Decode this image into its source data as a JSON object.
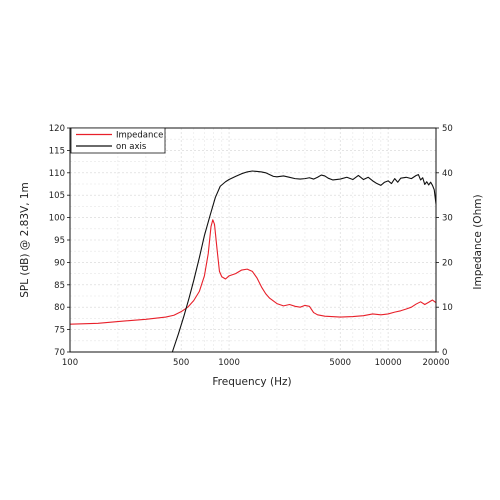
{
  "chart_data": {
    "type": "line",
    "xlabel": "Frequency (Hz)",
    "ylabel_left": "SPL (dB) @ 2.83V, 1m",
    "ylabel_right": "Impedance (Ohm)",
    "x_scale": "log",
    "xlim": [
      100,
      20000
    ],
    "ylim_left": [
      70,
      120
    ],
    "ylim_right": [
      0,
      50
    ],
    "x_ticks": [
      100,
      500,
      1000,
      5000,
      10000,
      20000
    ],
    "x_tick_labels": [
      "100",
      "500",
      "1000",
      "5000",
      "10000",
      "20000"
    ],
    "y_ticks_left": [
      70,
      75,
      80,
      85,
      90,
      95,
      100,
      105,
      110,
      115,
      120
    ],
    "y_ticks_right": [
      0,
      10,
      20,
      30,
      40,
      50
    ],
    "grid": true,
    "legend_position": "top-left",
    "series": [
      {
        "name": "Impedance",
        "axis": "right",
        "color": "#e8202a",
        "points": [
          [
            100,
            6.2
          ],
          [
            150,
            6.4
          ],
          [
            200,
            6.8
          ],
          [
            300,
            7.3
          ],
          [
            400,
            7.8
          ],
          [
            450,
            8.2
          ],
          [
            500,
            9.0
          ],
          [
            550,
            10.0
          ],
          [
            600,
            11.5
          ],
          [
            650,
            13.5
          ],
          [
            700,
            17.0
          ],
          [
            740,
            22.0
          ],
          [
            770,
            28.0
          ],
          [
            790,
            29.5
          ],
          [
            810,
            28.5
          ],
          [
            840,
            23.0
          ],
          [
            870,
            18.0
          ],
          [
            900,
            16.8
          ],
          [
            950,
            16.3
          ],
          [
            1000,
            17.0
          ],
          [
            1100,
            17.5
          ],
          [
            1200,
            18.3
          ],
          [
            1300,
            18.5
          ],
          [
            1400,
            18.0
          ],
          [
            1500,
            16.5
          ],
          [
            1600,
            14.5
          ],
          [
            1700,
            13.0
          ],
          [
            1800,
            12.0
          ],
          [
            2000,
            10.8
          ],
          [
            2200,
            10.3
          ],
          [
            2400,
            10.6
          ],
          [
            2600,
            10.2
          ],
          [
            2800,
            10.0
          ],
          [
            3000,
            10.4
          ],
          [
            3200,
            10.2
          ],
          [
            3400,
            8.8
          ],
          [
            3600,
            8.3
          ],
          [
            4000,
            8.0
          ],
          [
            5000,
            7.8
          ],
          [
            6000,
            7.9
          ],
          [
            7000,
            8.1
          ],
          [
            8000,
            8.5
          ],
          [
            9000,
            8.3
          ],
          [
            10000,
            8.5
          ],
          [
            11000,
            8.9
          ],
          [
            12000,
            9.2
          ],
          [
            13000,
            9.6
          ],
          [
            14000,
            10.0
          ],
          [
            15000,
            10.7
          ],
          [
            16000,
            11.2
          ],
          [
            17000,
            10.6
          ],
          [
            18000,
            11.1
          ],
          [
            19000,
            11.6
          ],
          [
            20000,
            11.0
          ]
        ]
      },
      {
        "name": "on axis",
        "axis": "left",
        "color": "#111111",
        "points": [
          [
            440,
            70
          ],
          [
            480,
            74
          ],
          [
            520,
            78
          ],
          [
            560,
            82
          ],
          [
            600,
            86
          ],
          [
            650,
            91
          ],
          [
            700,
            96
          ],
          [
            760,
            100.5
          ],
          [
            820,
            104.5
          ],
          [
            880,
            107
          ],
          [
            950,
            108
          ],
          [
            1000,
            108.5
          ],
          [
            1100,
            109.2
          ],
          [
            1200,
            109.8
          ],
          [
            1300,
            110.2
          ],
          [
            1400,
            110.4
          ],
          [
            1500,
            110.3
          ],
          [
            1600,
            110.2
          ],
          [
            1700,
            110.0
          ],
          [
            1800,
            109.6
          ],
          [
            1900,
            109.2
          ],
          [
            2000,
            109.1
          ],
          [
            2200,
            109.3
          ],
          [
            2400,
            109.0
          ],
          [
            2600,
            108.7
          ],
          [
            2800,
            108.6
          ],
          [
            3000,
            108.7
          ],
          [
            3200,
            108.9
          ],
          [
            3400,
            108.6
          ],
          [
            3600,
            109.0
          ],
          [
            3800,
            109.5
          ],
          [
            4000,
            109.3
          ],
          [
            4200,
            108.8
          ],
          [
            4500,
            108.4
          ],
          [
            5000,
            108.6
          ],
          [
            5500,
            109.0
          ],
          [
            6000,
            108.5
          ],
          [
            6500,
            109.4
          ],
          [
            7000,
            108.5
          ],
          [
            7500,
            109.0
          ],
          [
            8000,
            108.2
          ],
          [
            8500,
            107.6
          ],
          [
            9000,
            107.2
          ],
          [
            9500,
            107.9
          ],
          [
            10000,
            108.2
          ],
          [
            10500,
            107.6
          ],
          [
            11000,
            108.7
          ],
          [
            11500,
            107.9
          ],
          [
            12000,
            108.8
          ],
          [
            13000,
            109.0
          ],
          [
            14000,
            108.7
          ],
          [
            15000,
            109.4
          ],
          [
            15500,
            109.6
          ],
          [
            16000,
            108.4
          ],
          [
            16500,
            108.9
          ],
          [
            17000,
            107.4
          ],
          [
            17500,
            108.0
          ],
          [
            18000,
            107.3
          ],
          [
            18500,
            107.9
          ],
          [
            19000,
            107.2
          ],
          [
            19500,
            106.2
          ],
          [
            20000,
            103.0
          ]
        ]
      }
    ]
  }
}
